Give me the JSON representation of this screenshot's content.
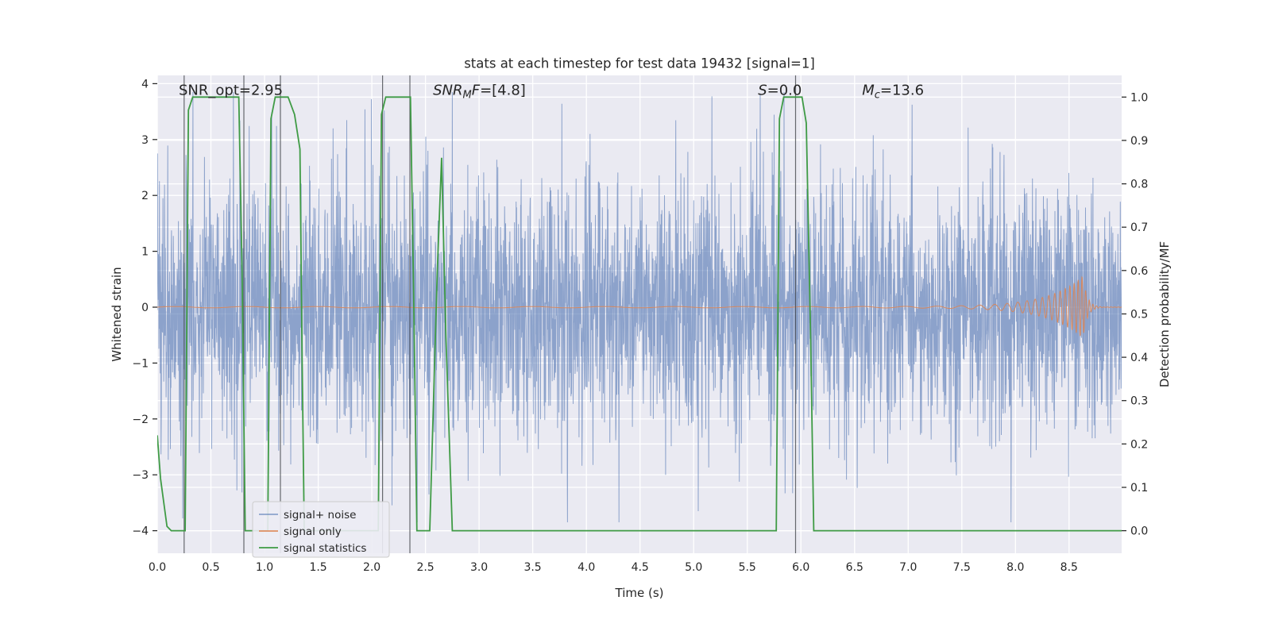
{
  "figure": {
    "title": "stats at each timestep for test data 19432 [signal=1]",
    "xlabel": "Time (s)",
    "ylabel_left": "Whitened strain",
    "ylabel_right": "Detection probability/MF"
  },
  "chart_data": {
    "type": "line",
    "title": "stats at each timestep for test data 19432 [signal=1]",
    "xlabel": "Time (s)",
    "ylabel_left": "Whitened strain",
    "ylabel_right": "Detection probability/MF",
    "x_range": [
      0.0,
      8.99
    ],
    "ylim_left": [
      -4.4,
      4.15
    ],
    "ylim_right": [
      -0.053,
      1.049
    ],
    "grid": {
      "visible": true,
      "color": "#ffffff"
    },
    "background_color": "#eaeaf2",
    "x_ticks": {
      "values": [
        0,
        0.5,
        1,
        1.5,
        2,
        2.5,
        3,
        3.5,
        4,
        4.5,
        5,
        5.5,
        6,
        6.5,
        7,
        7.5,
        8,
        8.5
      ],
      "labels": [
        "0.0",
        "0.5",
        "1.0",
        "1.5",
        "2.0",
        "2.5",
        "3.0",
        "3.5",
        "4.0",
        "4.5",
        "5.0",
        "5.5",
        "6.0",
        "6.5",
        "7.0",
        "7.5",
        "8.0",
        "8.5"
      ]
    },
    "y_ticks_left": {
      "values": [
        -4,
        -3,
        -2,
        -1,
        0,
        1,
        2,
        3,
        4
      ],
      "labels": [
        "−4",
        "−3",
        "−2",
        "−1",
        "0",
        "1",
        "2",
        "3",
        "4"
      ]
    },
    "y_ticks_right": {
      "values": [
        0,
        0.1,
        0.2,
        0.3,
        0.4,
        0.5,
        0.6,
        0.7,
        0.8,
        0.9,
        1.0
      ],
      "labels": [
        "0.0",
        "0.1",
        "0.2",
        "0.3",
        "0.4",
        "0.5",
        "0.6",
        "0.7",
        "0.8",
        "0.9",
        "1.0"
      ]
    },
    "annotations": [
      {
        "x": 0.2,
        "y": 3.8,
        "segments": [
          {
            "t": "SNR_opt=2.95",
            "s": "n"
          }
        ]
      },
      {
        "x": 2.57,
        "y": 3.8,
        "segments": [
          {
            "t": "SNR",
            "s": "i"
          },
          {
            "t": "M",
            "s": "sub"
          },
          {
            "t": "F",
            "s": "i"
          },
          {
            "t": "=[4.8]",
            "s": "n"
          }
        ]
      },
      {
        "x": 5.6,
        "y": 3.8,
        "segments": [
          {
            "t": "S",
            "s": "i"
          },
          {
            "t": "=0.0",
            "s": "n"
          }
        ]
      },
      {
        "x": 6.57,
        "y": 3.8,
        "segments": [
          {
            "t": "M",
            "s": "i"
          },
          {
            "t": "c",
            "s": "sub"
          },
          {
            "t": "=13.6",
            "s": "n"
          }
        ]
      }
    ],
    "vlines": {
      "color": "#44474c",
      "x": [
        0.25,
        0.807,
        1.148,
        2.1,
        2.355,
        5.95
      ]
    },
    "series": [
      {
        "name": "signal+ noise",
        "axis": "left",
        "color": "#4c72b0",
        "opacity": 0.6,
        "kind": "gaussian-noise",
        "description": "whitened strain noise spanning 0-9 s, core band about ±1.5, frequent spikes to ±3.8",
        "n_points": 3600,
        "sigma": 1.05,
        "tail_sigma": 1.8,
        "tail_fraction": 0.1,
        "clip": 3.85,
        "seed": 19432
      },
      {
        "name": "signal only",
        "axis": "left",
        "color": "#dd8452",
        "opacity": 0.9,
        "kind": "chirp",
        "description": "near-zero amplitude waveform growing into a chirp, envelope peaks at about ±0.55 near t=8.63 s then rings down to flat",
        "n_points": 4200,
        "t_peak": 8.63,
        "peak_amplitude": 0.55,
        "base_amplitude": 0.012,
        "growth_rate": 3.2,
        "f0": 1.5,
        "f_peak": 28,
        "freq_rate": 1.8,
        "ring_decay": 25
      },
      {
        "name": "signal statistics",
        "axis": "right",
        "color": "#3f9b45",
        "opacity": 1,
        "kind": "piecewise-line",
        "points": [
          [
            0.0,
            0.22
          ],
          [
            0.03,
            0.12
          ],
          [
            0.09,
            0.01
          ],
          [
            0.13,
            0.0
          ],
          [
            0.26,
            0.0
          ],
          [
            0.29,
            0.97
          ],
          [
            0.33,
            1.0
          ],
          [
            0.76,
            1.0
          ],
          [
            0.79,
            0.6
          ],
          [
            0.82,
            0.0
          ],
          [
            1.03,
            0.0
          ],
          [
            1.06,
            0.95
          ],
          [
            1.1,
            1.0
          ],
          [
            1.22,
            1.0
          ],
          [
            1.28,
            0.96
          ],
          [
            1.33,
            0.88
          ],
          [
            1.35,
            0.4
          ],
          [
            1.37,
            0.0
          ],
          [
            2.06,
            0.0
          ],
          [
            2.09,
            0.96
          ],
          [
            2.13,
            1.0
          ],
          [
            2.36,
            1.0
          ],
          [
            2.39,
            0.55
          ],
          [
            2.42,
            0.0
          ],
          [
            2.54,
            0.0
          ],
          [
            2.61,
            0.6
          ],
          [
            2.65,
            0.86
          ],
          [
            2.69,
            0.45
          ],
          [
            2.75,
            0.0
          ],
          [
            5.77,
            0.0
          ],
          [
            5.8,
            0.95
          ],
          [
            5.84,
            1.0
          ],
          [
            6.01,
            1.0
          ],
          [
            6.05,
            0.94
          ],
          [
            6.09,
            0.45
          ],
          [
            6.12,
            0.0
          ],
          [
            8.99,
            0.0
          ]
        ]
      }
    ],
    "legend": {
      "position": "lower-left",
      "entries": [
        {
          "label": "signal+ noise",
          "color": "#4c72b0",
          "opacity": 0.6
        },
        {
          "label": "signal only",
          "color": "#dd8452",
          "opacity": 0.9
        },
        {
          "label": "signal statistics",
          "color": "#3f9b45",
          "opacity": 1
        }
      ]
    }
  }
}
